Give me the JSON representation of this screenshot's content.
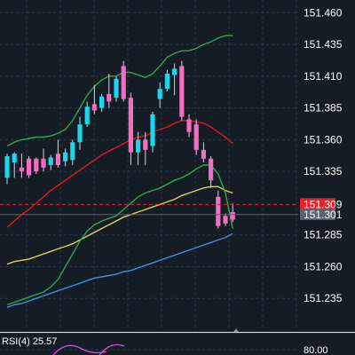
{
  "chart_data": {
    "type": "candlestick",
    "price_axis": {
      "min": 151.21,
      "max": 151.47,
      "ticks": [
        "151.460",
        "151.435",
        "151.410",
        "151.385",
        "151.360",
        "151.335",
        "151.285",
        "151.260",
        "151.235"
      ]
    },
    "current_price_labels": [
      {
        "text": "151.309",
        "value": 151.309,
        "color": "#e8222a"
      },
      {
        "text": "151.301",
        "value": 151.301,
        "color": "#5a6270"
      }
    ],
    "candles": [
      {
        "o": 151.33,
        "h": 151.349,
        "l": 151.325,
        "c": 151.347
      },
      {
        "o": 151.342,
        "h": 151.35,
        "l": 151.33,
        "c": 151.349
      },
      {
        "o": 151.338,
        "h": 151.349,
        "l": 151.33,
        "c": 151.335
      },
      {
        "o": 151.345,
        "h": 151.347,
        "l": 151.33,
        "c": 151.332
      },
      {
        "o": 151.345,
        "h": 151.346,
        "l": 151.333,
        "c": 151.335
      },
      {
        "o": 151.345,
        "h": 151.353,
        "l": 151.335,
        "c": 151.338
      },
      {
        "o": 151.34,
        "h": 151.348,
        "l": 151.336,
        "c": 151.346
      },
      {
        "o": 151.349,
        "h": 151.36,
        "l": 151.338,
        "c": 151.34
      },
      {
        "o": 151.343,
        "h": 151.353,
        "l": 151.339,
        "c": 151.35
      },
      {
        "o": 151.344,
        "h": 151.36,
        "l": 151.34,
        "c": 151.358
      },
      {
        "o": 151.358,
        "h": 151.378,
        "l": 151.352,
        "c": 151.372
      },
      {
        "o": 151.372,
        "h": 151.39,
        "l": 151.37,
        "c": 151.386
      },
      {
        "o": 151.388,
        "h": 151.403,
        "l": 151.38,
        "c": 151.383
      },
      {
        "o": 151.385,
        "h": 151.396,
        "l": 151.382,
        "c": 151.394
      },
      {
        "o": 151.396,
        "h": 151.412,
        "l": 151.385,
        "c": 151.39
      },
      {
        "o": 151.393,
        "h": 151.41,
        "l": 151.39,
        "c": 151.408
      },
      {
        "o": 151.418,
        "h": 151.422,
        "l": 151.39,
        "c": 151.392
      },
      {
        "o": 151.393,
        "h": 151.397,
        "l": 151.34,
        "c": 151.35
      },
      {
        "o": 151.35,
        "h": 151.366,
        "l": 151.34,
        "c": 151.36
      },
      {
        "o": 151.36,
        "h": 151.366,
        "l": 151.34,
        "c": 151.352
      },
      {
        "o": 151.355,
        "h": 151.382,
        "l": 151.35,
        "c": 151.38
      },
      {
        "o": 151.392,
        "h": 151.405,
        "l": 151.385,
        "c": 151.4
      },
      {
        "o": 151.4,
        "h": 151.415,
        "l": 151.398,
        "c": 151.412
      },
      {
        "o": 151.411,
        "h": 151.42,
        "l": 151.395,
        "c": 151.416
      },
      {
        "o": 151.418,
        "h": 151.422,
        "l": 151.375,
        "c": 151.378
      },
      {
        "o": 151.376,
        "h": 151.38,
        "l": 151.362,
        "c": 151.366
      },
      {
        "o": 151.372,
        "h": 151.376,
        "l": 151.348,
        "c": 151.352
      },
      {
        "o": 151.352,
        "h": 151.358,
        "l": 151.342,
        "c": 151.345
      },
      {
        "o": 151.345,
        "h": 151.347,
        "l": 151.322,
        "c": 151.328
      },
      {
        "o": 151.315,
        "h": 151.32,
        "l": 151.29,
        "c": 151.292
      },
      {
        "o": 151.3,
        "h": 151.302,
        "l": 151.292,
        "c": 151.294
      },
      {
        "o": 151.303,
        "h": 151.31,
        "l": 151.295,
        "c": 151.297
      }
    ],
    "series": [
      {
        "color": "#e01b1b",
        "points": [
          151.291,
          151.296,
          151.301,
          151.305,
          151.31,
          151.315,
          151.32,
          151.324,
          151.328,
          151.332,
          151.336,
          151.34,
          151.344,
          151.348,
          151.351,
          151.354,
          151.357,
          151.36,
          151.362,
          151.363,
          151.366,
          151.368,
          151.37,
          151.373,
          151.375,
          151.375,
          151.374,
          151.373,
          151.37,
          151.366,
          151.362,
          151.357
        ]
      },
      {
        "color": "#dcd656",
        "points": [
          151.262,
          151.264,
          151.265,
          151.266,
          151.268,
          151.27,
          151.272,
          151.274,
          151.276,
          151.278,
          151.281,
          151.284,
          151.287,
          151.29,
          151.293,
          151.296,
          151.299,
          151.301,
          151.303,
          151.305,
          151.307,
          151.309,
          151.311,
          151.313,
          151.316,
          151.318,
          151.32,
          151.322,
          151.323,
          151.323,
          151.32,
          151.318
        ]
      },
      {
        "color": "#4c8cdc",
        "points": [
          151.228,
          151.23,
          151.231,
          151.233,
          151.235,
          151.237,
          151.239,
          151.241,
          151.243,
          151.245,
          151.247,
          151.249,
          151.251,
          151.252,
          151.253,
          151.254,
          151.256,
          151.257,
          151.259,
          151.261,
          151.263,
          151.265,
          151.267,
          151.269,
          151.271,
          151.273,
          151.275,
          151.277,
          151.279,
          151.281,
          151.283,
          151.286
        ]
      },
      {
        "color": "#2ea84a",
        "points": [
          151.355,
          151.358,
          151.36,
          151.361,
          151.362,
          151.362,
          151.363,
          151.365,
          151.368,
          151.375,
          151.385,
          151.395,
          151.402,
          151.407,
          151.41,
          151.41,
          151.413,
          151.413,
          151.411,
          151.409,
          151.412,
          151.418,
          151.425,
          151.428,
          151.43,
          151.43,
          151.432,
          151.435,
          151.437,
          151.44,
          151.442,
          151.442
        ]
      },
      {
        "color": "#2ea84a",
        "points": [
          151.23,
          151.232,
          151.234,
          151.236,
          151.238,
          151.24,
          151.244,
          151.25,
          151.26,
          151.27,
          151.28,
          151.288,
          151.293,
          151.296,
          151.298,
          151.3,
          151.305,
          151.31,
          151.315,
          151.318,
          151.32,
          151.322,
          151.325,
          151.328,
          151.33,
          151.333,
          151.337,
          151.34,
          151.34,
          151.333,
          151.318,
          151.29
        ]
      }
    ],
    "rsi": {
      "label": "RSI(4) 25.57",
      "level_label": "80.00"
    },
    "grid": true
  }
}
